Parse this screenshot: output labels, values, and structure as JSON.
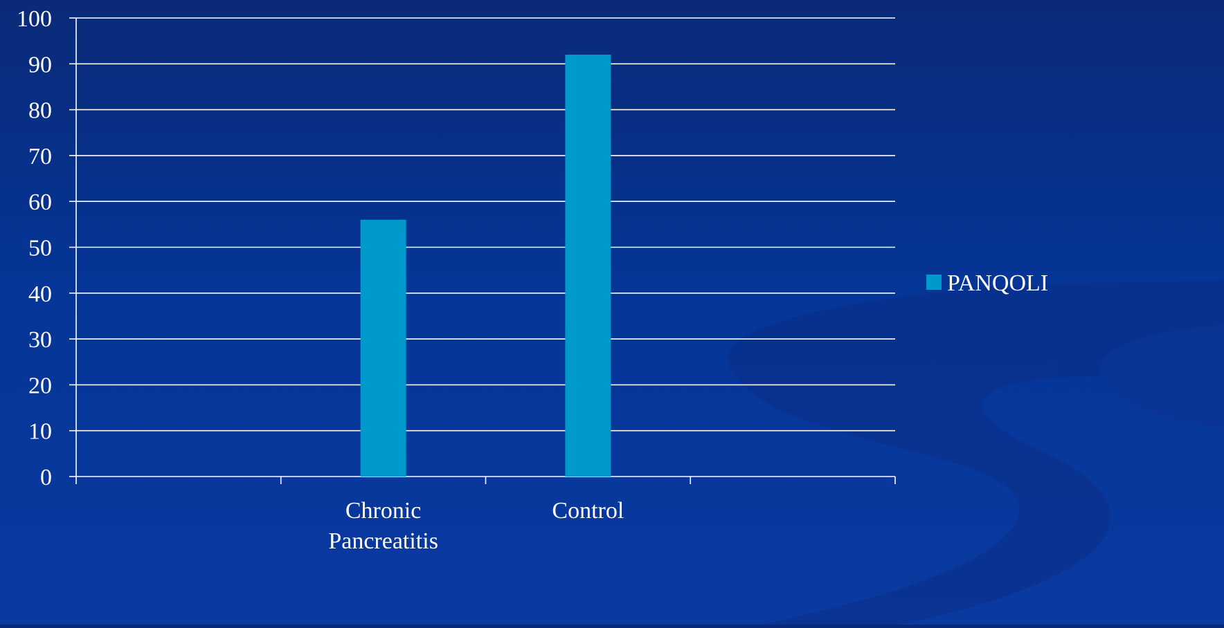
{
  "colors": {
    "background": "#053596",
    "bar": "#0099cc",
    "grid": "#ffffff",
    "text": "#ffffff",
    "swoosh": "#0f2f86"
  },
  "chart_data": {
    "type": "bar",
    "categories": [
      "",
      "Chronic\nPancreatitis",
      "Control",
      ""
    ],
    "series": [
      {
        "name": "PANQOLI",
        "values": [
          null,
          56,
          92,
          null
        ]
      }
    ],
    "ylim": [
      0,
      100
    ],
    "yticks": [
      0,
      10,
      20,
      30,
      40,
      50,
      60,
      70,
      80,
      90,
      100
    ],
    "grid": true,
    "legend": "right"
  }
}
